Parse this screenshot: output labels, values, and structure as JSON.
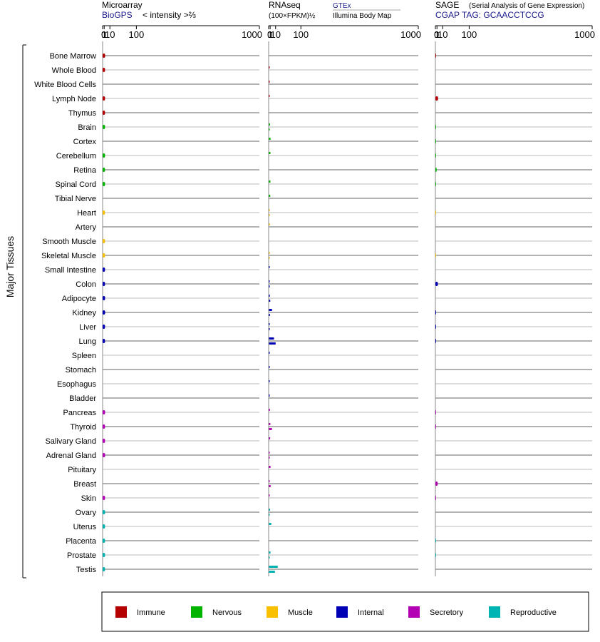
{
  "chart_data": {
    "type": "bar",
    "orientation": "horizontal",
    "axis_scale": "power-2/3",
    "y_axis_label": "Major Tissues",
    "categories": [
      "Bone Marrow",
      "Whole Blood",
      "White Blood Cells",
      "Lymph Node",
      "Thymus",
      "Brain",
      "Cortex",
      "Cerebellum",
      "Retina",
      "Spinal Cord",
      "Tibial Nerve",
      "Heart",
      "Artery",
      "Smooth Muscle",
      "Skeletal Muscle",
      "Small Intestine",
      "Colon",
      "Adipocyte",
      "Kidney",
      "Liver",
      "Lung",
      "Spleen",
      "Stomach",
      "Esophagus",
      "Bladder",
      "Pancreas",
      "Thyroid",
      "Salivary Gland",
      "Adrenal Gland",
      "Pituitary",
      "Breast",
      "Skin",
      "Ovary",
      "Uterus",
      "Placenta",
      "Prostate",
      "Testis"
    ],
    "category_groups": [
      "Immune",
      "Immune",
      "Immune",
      "Immune",
      "Immune",
      "Nervous",
      "Nervous",
      "Nervous",
      "Nervous",
      "Nervous",
      "Nervous",
      "Muscle",
      "Muscle",
      "Muscle",
      "Muscle",
      "Internal",
      "Internal",
      "Internal",
      "Internal",
      "Internal",
      "Internal",
      "Internal",
      "Internal",
      "Internal",
      "Internal",
      "Secretory",
      "Secretory",
      "Secretory",
      "Secretory",
      "Secretory",
      "Secretory",
      "Secretory",
      "Reproductive",
      "Reproductive",
      "Reproductive",
      "Reproductive",
      "Reproductive"
    ],
    "panels": [
      {
        "title": "Microarray",
        "source": "BioGPS",
        "unit": "< intensity >⅔",
        "tick_labels": [
          "0",
          "1",
          "10",
          "100",
          "1000"
        ],
        "tick_values": [
          0,
          1,
          10,
          100,
          1000
        ],
        "xlim": [
          0,
          1000
        ],
        "values": [
          2.0,
          1.9,
          null,
          1.9,
          1.9,
          1.9,
          null,
          1.9,
          1.9,
          1.9,
          null,
          1.8,
          null,
          1.9,
          1.9,
          1.9,
          1.9,
          2.0,
          2.0,
          1.9,
          1.9,
          null,
          null,
          null,
          null,
          2.0,
          1.9,
          1.9,
          2.0,
          null,
          null,
          1.9,
          2.0,
          1.9,
          1.9,
          1.9,
          1.9
        ]
      },
      {
        "title": "RNAseq",
        "unit": "(100×FPKM)½",
        "sources": [
          "GTEx",
          "Illumina Body Map"
        ],
        "tick_labels": [
          "0",
          "1",
          "10",
          "100",
          "1000"
        ],
        "tick_values": [
          0,
          1,
          10,
          100,
          1000
        ],
        "xlim": [
          0,
          1000
        ],
        "series": [
          {
            "name": "GTEx",
            "values": [
              null,
              0.6,
              0.01,
              0.01,
              null,
              0.9,
              1.4,
              1.3,
              null,
              1.3,
              1.1,
              0.3,
              0.7,
              null,
              0.6,
              0.6,
              0.4,
              0.7,
              3.3,
              0.6,
              6.7,
              0.3,
              0.5,
              0.5,
              0.6,
              0.8,
              1.2,
              1.0,
              0.4,
              1.4,
              0.6,
              0.5,
              0.9,
              2.3,
              null,
              1.4,
              15.0
            ]
          },
          {
            "name": "Illumina Body Map",
            "values": [
              null,
              null,
              null,
              null,
              null,
              0.01,
              null,
              null,
              null,
              null,
              null,
              0.01,
              null,
              null,
              0.01,
              null,
              0.01,
              1.1,
              0.8,
              0.01,
              10.1,
              null,
              null,
              null,
              null,
              null,
              3.2,
              null,
              0.01,
              null,
              1.5,
              null,
              0.01,
              null,
              null,
              0.01,
              8.6
            ]
          }
        ]
      },
      {
        "title": "SAGE",
        "subtitle": "(Serial Analysis of Gene Expression)",
        "source": "CGAP TAG: GCAACCTCCG",
        "tick_labels": [
          "0",
          "1",
          "10",
          "100",
          "1000"
        ],
        "tick_values": [
          0,
          1,
          10,
          100,
          1000
        ],
        "xlim": [
          0,
          1000
        ],
        "values": [
          0.01,
          null,
          null,
          2.2,
          null,
          0.01,
          0.01,
          0.01,
          0.7,
          0.01,
          null,
          0.01,
          null,
          null,
          0.01,
          null,
          2.0,
          null,
          0.01,
          0.01,
          0.01,
          null,
          null,
          null,
          null,
          0.01,
          0.01,
          null,
          null,
          null,
          1.8,
          0.1,
          null,
          null,
          0.01,
          0.01,
          null
        ]
      }
    ],
    "legend": {
      "placement": "bottom",
      "entries": [
        {
          "name": "Immune",
          "color": "#b40000"
        },
        {
          "name": "Nervous",
          "color": "#00b400"
        },
        {
          "name": "Muscle",
          "color": "#f8c000"
        },
        {
          "name": "Internal",
          "color": "#0000b4"
        },
        {
          "name": "Secretory",
          "color": "#b400b4"
        },
        {
          "name": "Reproductive",
          "color": "#00b4b4"
        }
      ]
    }
  }
}
